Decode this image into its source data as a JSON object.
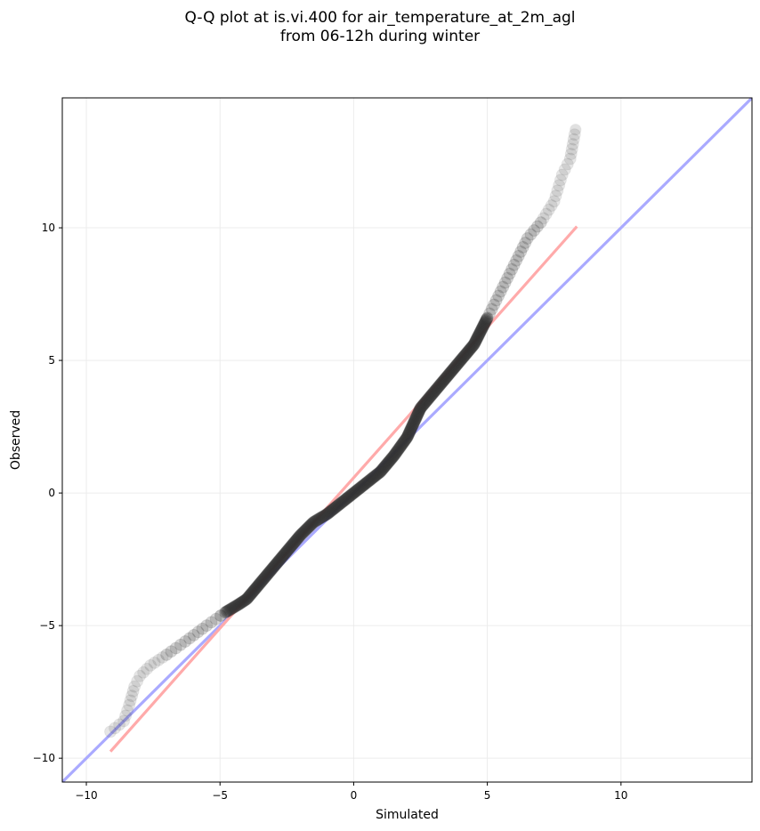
{
  "chart_data": {
    "type": "scatter",
    "title_line1": "Q-Q plot at is.vi.400 for air_temperature_at_2m_agl",
    "title_line2": "from 06-12h during winter",
    "xlabel": "Simulated",
    "ylabel": "Observed",
    "xlim": [
      -10.9,
      14.9
    ],
    "ylim": [
      -10.9,
      14.9
    ],
    "xticks": [
      -10,
      -5,
      0,
      5,
      10
    ],
    "yticks": [
      -10,
      -5,
      0,
      5,
      10
    ],
    "grid": true,
    "reference_lines": [
      {
        "color": "#aaaaff",
        "points": [
          [
            -10.9,
            -10.9
          ],
          [
            14.9,
            14.9
          ]
        ]
      },
      {
        "color": "#ffaaaa",
        "points": [
          [
            -9.1,
            -9.75
          ],
          [
            8.35,
            10.05
          ]
        ]
      }
    ],
    "quantile_curve": {
      "color": "#333333",
      "points": [
        [
          -9.1,
          -9.0
        ],
        [
          -8.6,
          -8.6
        ],
        [
          -8.4,
          -8.0
        ],
        [
          -8.2,
          -7.3
        ],
        [
          -8.0,
          -6.9
        ],
        [
          -7.6,
          -6.5
        ],
        [
          -7.0,
          -6.1
        ],
        [
          -6.3,
          -5.6
        ],
        [
          -5.5,
          -5.0
        ],
        [
          -4.8,
          -4.5
        ],
        [
          -4.3,
          -4.2
        ],
        [
          -4.0,
          -4.0
        ],
        [
          -3.5,
          -3.4
        ],
        [
          -3.0,
          -2.8
        ],
        [
          -2.5,
          -2.2
        ],
        [
          -2.0,
          -1.6
        ],
        [
          -1.5,
          -1.1
        ],
        [
          -1.0,
          -0.8
        ],
        [
          -0.5,
          -0.4
        ],
        [
          0.0,
          0.0
        ],
        [
          0.5,
          0.4
        ],
        [
          1.0,
          0.8
        ],
        [
          1.5,
          1.4
        ],
        [
          2.0,
          2.1
        ],
        [
          2.5,
          3.2
        ],
        [
          3.0,
          3.8
        ],
        [
          3.5,
          4.4
        ],
        [
          4.0,
          5.0
        ],
        [
          4.5,
          5.6
        ],
        [
          5.0,
          6.6
        ],
        [
          5.5,
          7.6
        ],
        [
          6.0,
          8.6
        ],
        [
          6.5,
          9.6
        ],
        [
          7.0,
          10.2
        ],
        [
          7.5,
          11.0
        ],
        [
          7.8,
          12.0
        ],
        [
          8.1,
          12.6
        ],
        [
          8.3,
          13.7
        ]
      ]
    }
  }
}
